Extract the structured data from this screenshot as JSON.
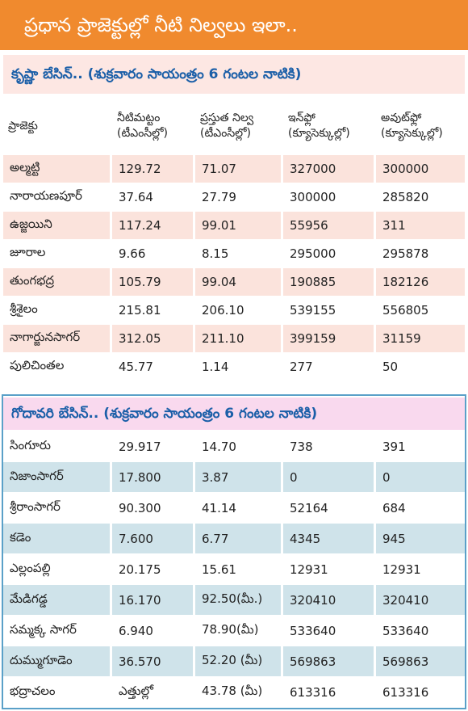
{
  "title": "ప్రధాన ప్రాజెక్టుల్లో నీటి నిల్వలు ఇలా..",
  "krishna": {
    "heading": "కృష్ణా బేసిన్.. (శుక్రవారం సాయంత్రం 6 గంటల నాటికి)",
    "columns": [
      [
        "ప్రాజెక్టు"
      ],
      [
        "నీటిమట్టం",
        "(టీఎంసీల్లో)"
      ],
      [
        "ప్రస్తుత నిల్వ",
        "(టీఎంసీల్లో)"
      ],
      [
        "ఇన్‌ఫ్లో",
        "(క్యూసెక్కుల్లో)"
      ],
      [
        "అవుట్‌ఫ్లో",
        "(క్యూసెక్కుల్లో)"
      ]
    ],
    "rows": [
      [
        "అల్మట్టి",
        "129.72",
        "71.07",
        "327000",
        "300000"
      ],
      [
        "నారాయణపూర్",
        "37.64",
        "27.79",
        "300000",
        "285820"
      ],
      [
        "ఉజ్జయిని",
        "117.24",
        "99.01",
        "55956",
        "311"
      ],
      [
        "జూరాల",
        "9.66",
        "8.15",
        "295000",
        "295878"
      ],
      [
        "తుంగభద్ర",
        "105.79",
        "99.04",
        "190885",
        "182126"
      ],
      [
        "శ్రీశైలం",
        "215.81",
        "206.10",
        "539155",
        "556805"
      ],
      [
        "నాగార్జునసాగర్",
        "312.05",
        "211.10",
        "399159",
        "31159"
      ],
      [
        "పులిచింతల",
        "45.77",
        "1.14",
        "277",
        "50"
      ]
    ]
  },
  "godavari": {
    "heading": "గోదావరి బేసిన్.. (శుక్రవారం సాయంత్రం 6 గంటల నాటికి)",
    "rows": [
      [
        "సింగూరు",
        "29.917",
        "14.70",
        "738",
        "391"
      ],
      [
        "నిజాంసాగర్",
        "17.800",
        "3.87",
        "0",
        "0"
      ],
      [
        "శ్రీరాంసాగర్",
        "90.300",
        "41.14",
        "52164",
        "684"
      ],
      [
        "కడెం",
        "7.600",
        "6.77",
        "4345",
        "945"
      ],
      [
        "ఎల్లంపల్లి",
        "20.175",
        "15.61",
        "12931",
        "12931"
      ],
      [
        "మేడిగడ్డ",
        "16.170",
        "92.50(మీ.)",
        "320410",
        "320410"
      ],
      [
        "సమ్మక్క సాగర్",
        "6.940",
        "78.90(మీ)",
        "533640",
        "533640"
      ],
      [
        "దుమ్ముగూడెం",
        "36.570",
        "52.20 (మీ)",
        "569863",
        "569863"
      ],
      [
        "భద్రాచలం",
        "ఎత్తుల్లో",
        "43.78 (మీ)",
        "613316",
        "613316"
      ]
    ]
  }
}
